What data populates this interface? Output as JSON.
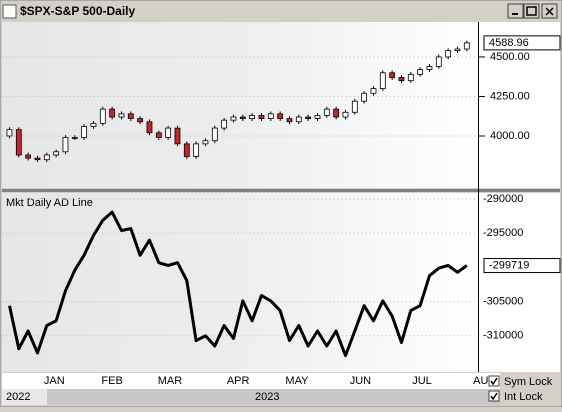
{
  "window_title": "$SPX-S&P 500-Daily",
  "years": [
    "2022",
    "2023"
  ],
  "checkboxes": [
    "Sym Lock",
    "Int Lock"
  ],
  "chart_data": [
    {
      "type": "candlestick",
      "last_value": 4588.96,
      "up_color": "#ffffff",
      "down_color": "#c0282d",
      "open": [
        4000,
        4040,
        3880,
        3860,
        3850,
        3880,
        3900,
        3990,
        3990,
        4060,
        4080,
        4170,
        4120,
        4140,
        4110,
        4090,
        4020,
        3990,
        4050,
        3950,
        3870,
        3950,
        3970,
        4050,
        4100,
        4120,
        4110,
        4130,
        4110,
        4140,
        4110,
        4090,
        4120,
        4110,
        4130,
        4170,
        4120,
        4150,
        4220,
        4270,
        4300,
        4400,
        4370,
        4350,
        4390,
        4420,
        4440,
        4500,
        4540,
        4550
      ],
      "high": [
        4055,
        4055,
        3895,
        3875,
        3895,
        3915,
        4005,
        4005,
        4075,
        4095,
        4185,
        4185,
        4155,
        4155,
        4125,
        4105,
        4035,
        4065,
        4065,
        3965,
        3965,
        3985,
        4065,
        4115,
        4135,
        4135,
        4145,
        4145,
        4155,
        4155,
        4125,
        4135,
        4135,
        4145,
        4185,
        4185,
        4165,
        4235,
        4285,
        4315,
        4415,
        4415,
        4385,
        4405,
        4435,
        4455,
        4515,
        4555,
        4565,
        4604
      ],
      "low": [
        3985,
        3865,
        3845,
        3835,
        3835,
        3865,
        3885,
        3975,
        3975,
        4045,
        4065,
        4105,
        4105,
        4095,
        4075,
        4005,
        3975,
        3975,
        3935,
        3855,
        3855,
        3935,
        3955,
        4035,
        4085,
        4095,
        4095,
        4095,
        4095,
        4095,
        4075,
        4075,
        4095,
        4095,
        4115,
        4105,
        4105,
        4135,
        4205,
        4255,
        4285,
        4355,
        4335,
        4335,
        4375,
        4405,
        4425,
        4485,
        4525,
        4535
      ],
      "close": [
        4040,
        3880,
        3860,
        3850,
        3880,
        3900,
        3990,
        3990,
        4060,
        4080,
        4170,
        4120,
        4140,
        4110,
        4090,
        4020,
        3990,
        4050,
        3950,
        3870,
        3950,
        3970,
        4050,
        4100,
        4120,
        4110,
        4130,
        4110,
        4140,
        4110,
        4090,
        4120,
        4110,
        4130,
        4170,
        4120,
        4150,
        4220,
        4270,
        4300,
        4400,
        4370,
        4350,
        4390,
        4420,
        4440,
        4500,
        4540,
        4550,
        4588.96
      ],
      "xlim": [
        -0.8,
        50.2
      ],
      "ylim": [
        3671,
        4721
      ],
      "yticks": [
        {
          "value": 4000,
          "label": "4000.00"
        },
        {
          "value": 4250,
          "label": "4250.00"
        },
        {
          "value": 4500,
          "label": "4500.00"
        }
      ],
      "grid": true
    },
    {
      "type": "line",
      "title": "Mkt Daily AD Line",
      "color": "#000000",
      "last_value": -299719,
      "values": [
        -305600,
        -311900,
        -309300,
        -312500,
        -308500,
        -307800,
        -303400,
        -300400,
        -298200,
        -295300,
        -293100,
        -291900,
        -294600,
        -294300,
        -298200,
        -296000,
        -299300,
        -299700,
        -299300,
        -301900,
        -310700,
        -310000,
        -311500,
        -308500,
        -310400,
        -304900,
        -307800,
        -304100,
        -304900,
        -306300,
        -310700,
        -308500,
        -311500,
        -309300,
        -311500,
        -309300,
        -312900,
        -309300,
        -305600,
        -307800,
        -304900,
        -307100,
        -311000,
        -306300,
        -305600,
        -301200,
        -300100,
        -299700,
        -300700,
        -299719
      ],
      "xlim": [
        -0.8,
        50.2
      ],
      "ylim": [
        -315300,
        -289100
      ],
      "yticks": [
        -310000,
        -305000,
        -295000,
        -290000
      ],
      "xticks": [
        {
          "value": 4.8,
          "label": "JAN"
        },
        {
          "value": 11.0,
          "label": "FEB"
        },
        {
          "value": 17.2,
          "label": "MAR"
        },
        {
          "value": 24.5,
          "label": "APR"
        },
        {
          "value": 30.8,
          "label": "MAY"
        },
        {
          "value": 37.6,
          "label": "JUN"
        },
        {
          "value": 44.2,
          "label": "JUL"
        },
        {
          "value": 50.5,
          "label": "AU"
        }
      ],
      "grid": true
    }
  ]
}
